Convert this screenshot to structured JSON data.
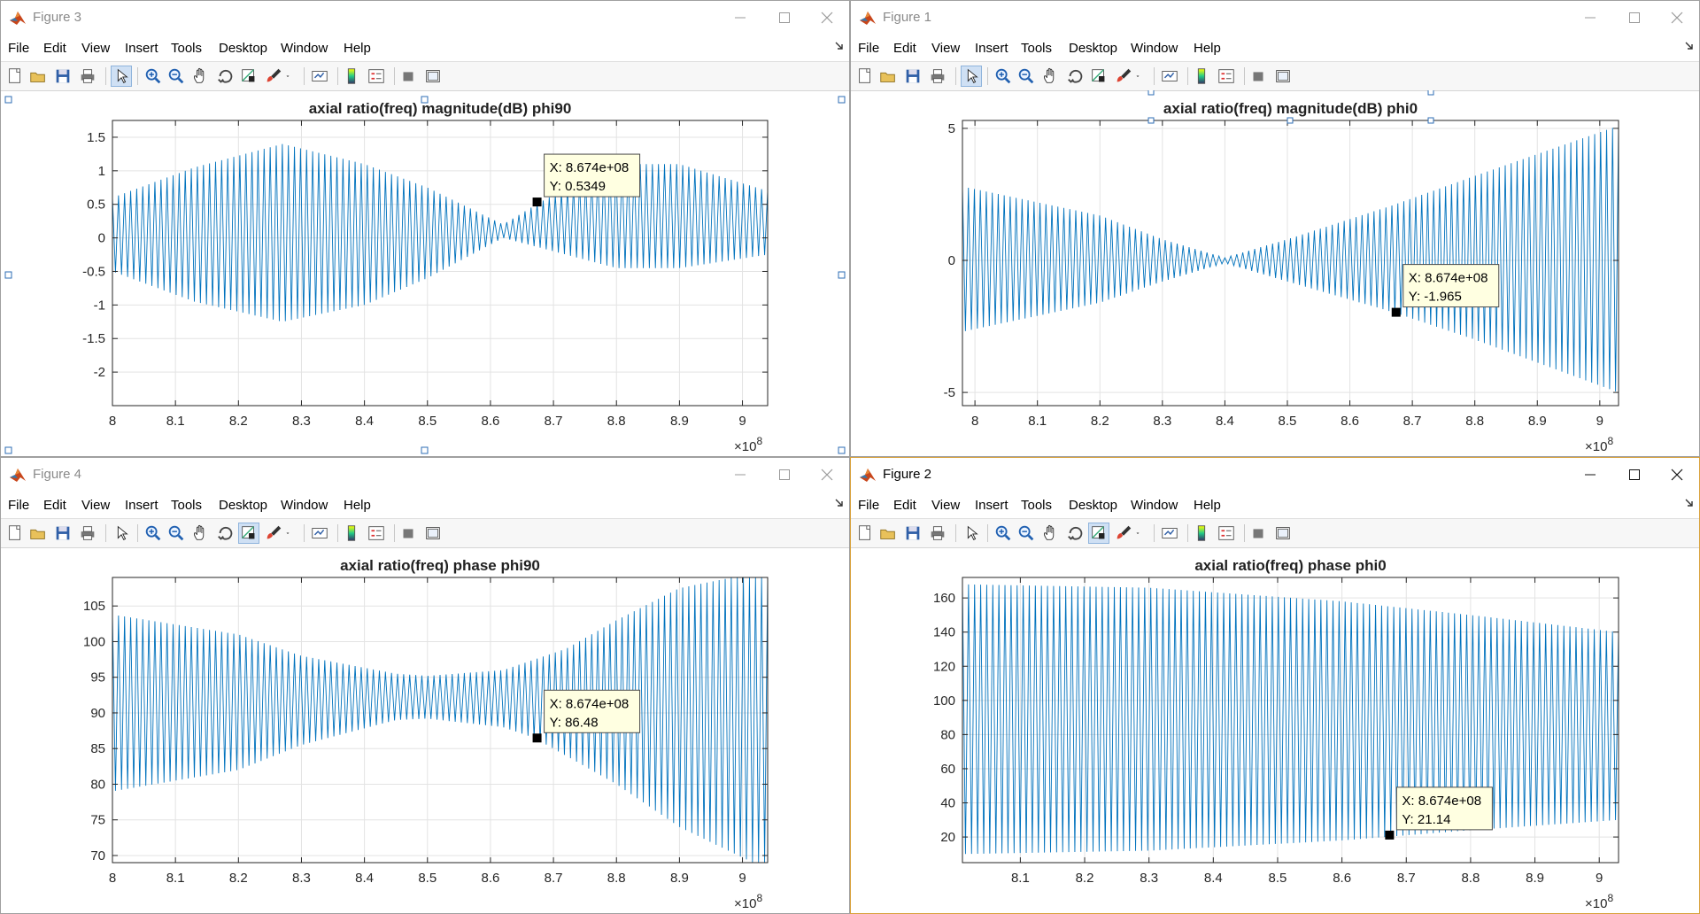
{
  "menus": [
    "File",
    "Edit",
    "View",
    "Insert",
    "Tools",
    "Desktop",
    "Window",
    "Help"
  ],
  "windows": [
    {
      "id": "fig3",
      "title": "Figure 3",
      "active": false,
      "selection_handles": true,
      "chart_data": {
        "type": "line",
        "title": "axial ratio(freq) magnitude(dB) phi90",
        "xlabel": "",
        "ylabel": "",
        "xlim": [
          800000000.0,
          904000000.0
        ],
        "ylim": [
          -2.5,
          1.75
        ],
        "xticks": [
          800000000.0,
          810000000.0,
          820000000.0,
          830000000.0,
          840000000.0,
          850000000.0,
          860000000.0,
          870000000.0,
          880000000.0,
          890000000.0,
          900000000.0
        ],
        "xtick_labels": [
          "8",
          "8.1",
          "8.2",
          "8.3",
          "8.4",
          "8.5",
          "8.6",
          "8.7",
          "8.8",
          "8.9",
          "9"
        ],
        "yticks": [
          1.5,
          1,
          0.5,
          0,
          -0.5,
          -1,
          -1.5,
          -2
        ],
        "ytick_labels": [
          "1.5",
          "1",
          "0.5",
          "0",
          "-0.5",
          "-1",
          "-1.5",
          "-2"
        ],
        "x_exponent": "8",
        "grid": true,
        "line_color": "#0072BD",
        "series": [
          {
            "cycles": 108,
            "envelope_upper": [
              [
                800000000.0,
                0.6
              ],
              [
                813000000.0,
                1.05
              ],
              [
                827000000.0,
                1.4
              ],
              [
                840000000.0,
                1.1
              ],
              [
                850000000.0,
                0.75
              ],
              [
                862000000.0,
                0.2
              ],
              [
                868000000.0,
                0.54
              ],
              [
                880000000.0,
                1.1
              ],
              [
                890000000.0,
                1.1
              ],
              [
                904000000.0,
                0.7
              ]
            ],
            "envelope_lower": [
              [
                800000000.0,
                -0.5
              ],
              [
                813000000.0,
                -0.95
              ],
              [
                827000000.0,
                -1.25
              ],
              [
                840000000.0,
                -1.0
              ],
              [
                850000000.0,
                -0.6
              ],
              [
                862000000.0,
                0.0
              ],
              [
                866000000.0,
                -0.1
              ],
              [
                880000000.0,
                -0.45
              ],
              [
                890000000.0,
                -0.45
              ],
              [
                904000000.0,
                -0.25
              ]
            ]
          }
        ],
        "datatip": {
          "x": 867400000.0,
          "y": 0.5349,
          "lines": [
            "X: 8.674e+08",
            "Y: 0.5349"
          ],
          "placement": "above-right"
        }
      }
    },
    {
      "id": "fig1",
      "title": "Figure 1",
      "active": false,
      "selection_handles": false,
      "chart_data": {
        "type": "line",
        "title": "axial ratio(freq) magnitude(dB) phi0",
        "xlabel": "",
        "ylabel": "",
        "xlim": [
          798000000.0,
          903000000.0
        ],
        "ylim": [
          -5.5,
          5.3
        ],
        "xticks": [
          800000000.0,
          810000000.0,
          820000000.0,
          830000000.0,
          840000000.0,
          850000000.0,
          860000000.0,
          870000000.0,
          880000000.0,
          890000000.0,
          900000000.0
        ],
        "xtick_labels": [
          "8",
          "8.1",
          "8.2",
          "8.3",
          "8.4",
          "8.5",
          "8.6",
          "8.7",
          "8.8",
          "8.9",
          "9"
        ],
        "yticks": [
          5,
          0,
          -5
        ],
        "ytick_labels": [
          "5",
          "0",
          "-5"
        ],
        "x_exponent": "8",
        "grid": true,
        "line_color": "#0072BD",
        "series": [
          {
            "cycles": 110,
            "envelope_upper": [
              [
                798000000.0,
                2.8
              ],
              [
                820000000.0,
                1.7
              ],
              [
                830000000.0,
                0.8
              ],
              [
                840000000.0,
                0.1
              ],
              [
                850000000.0,
                0.8
              ],
              [
                867000000.0,
                2.1
              ],
              [
                880000000.0,
                3.2
              ],
              [
                903000000.0,
                5.1
              ]
            ],
            "envelope_lower": [
              [
                798000000.0,
                -2.7
              ],
              [
                820000000.0,
                -1.6
              ],
              [
                830000000.0,
                -0.8
              ],
              [
                840000000.0,
                -0.1
              ],
              [
                850000000.0,
                -0.8
              ],
              [
                867000000.0,
                -1.965
              ],
              [
                880000000.0,
                -3.0
              ],
              [
                903000000.0,
                -5.0
              ]
            ]
          }
        ],
        "datatip": {
          "x": 867400000.0,
          "y": -1.965,
          "lines": [
            "X: 8.674e+08",
            "Y: -1.965"
          ],
          "placement": "above-right"
        }
      }
    },
    {
      "id": "fig4",
      "title": "Figure 4",
      "active": false,
      "selection_handles": false,
      "chart_data": {
        "type": "line",
        "title": "axial ratio(freq) phase phi90",
        "xlabel": "",
        "ylabel": "",
        "xlim": [
          800000000.0,
          904000000.0
        ],
        "ylim": [
          69,
          109
        ],
        "xticks": [
          800000000.0,
          810000000.0,
          820000000.0,
          830000000.0,
          840000000.0,
          850000000.0,
          860000000.0,
          870000000.0,
          880000000.0,
          890000000.0,
          900000000.0
        ],
        "xtick_labels": [
          "8",
          "8.1",
          "8.2",
          "8.3",
          "8.4",
          "8.5",
          "8.6",
          "8.7",
          "8.8",
          "8.9",
          "9"
        ],
        "yticks": [
          105,
          100,
          95,
          90,
          85,
          80,
          75,
          70
        ],
        "ytick_labels": [
          "105",
          "100",
          "95",
          "90",
          "85",
          "80",
          "75",
          "70"
        ],
        "x_exponent": "8",
        "grid": true,
        "line_color": "#0072BD",
        "series": [
          {
            "cycles": 108,
            "envelope_upper": [
              [
                800000000.0,
                103.8
              ],
              [
                820000000.0,
                101
              ],
              [
                830000000.0,
                98
              ],
              [
                845000000.0,
                95.5
              ],
              [
                850000000.0,
                95.2
              ],
              [
                862000000.0,
                96
              ],
              [
                872000000.0,
                99
              ],
              [
                880000000.0,
                103
              ],
              [
                890000000.0,
                107.5
              ],
              [
                904000000.0,
                110
              ]
            ],
            "envelope_lower": [
              [
                800000000.0,
                79
              ],
              [
                820000000.0,
                82
              ],
              [
                830000000.0,
                85.5
              ],
              [
                845000000.0,
                89
              ],
              [
                850000000.0,
                89.2
              ],
              [
                862000000.0,
                88
              ],
              [
                867000000.0,
                86.48
              ],
              [
                880000000.0,
                80
              ],
              [
                890000000.0,
                74
              ],
              [
                904000000.0,
                68
              ]
            ]
          }
        ],
        "datatip": {
          "x": 867400000.0,
          "y": 86.48,
          "lines": [
            "X: 8.674e+08",
            "Y: 86.48"
          ],
          "placement": "above-right"
        }
      }
    },
    {
      "id": "fig2",
      "title": "Figure 2",
      "active": true,
      "selection_handles": false,
      "chart_data": {
        "type": "line",
        "title": "axial ratio(freq) phase phi0",
        "xlabel": "",
        "ylabel": "",
        "xlim": [
          801000000.0,
          903000000.0
        ],
        "ylim": [
          5,
          172
        ],
        "xticks": [
          810000000.0,
          820000000.0,
          830000000.0,
          840000000.0,
          850000000.0,
          860000000.0,
          870000000.0,
          880000000.0,
          890000000.0,
          900000000.0
        ],
        "xtick_labels": [
          "8.1",
          "8.2",
          "8.3",
          "8.4",
          "8.5",
          "8.6",
          "8.7",
          "8.8",
          "8.9",
          "9"
        ],
        "yticks": [
          160,
          140,
          120,
          100,
          80,
          60,
          40,
          20
        ],
        "ytick_labels": [
          "160",
          "140",
          "120",
          "100",
          "80",
          "60",
          "40",
          "20"
        ],
        "x_exponent": "8",
        "grid": true,
        "line_color": "#0072BD",
        "series": [
          {
            "cycles": 108,
            "envelope_upper": [
              [
                801000000.0,
                168
              ],
              [
                830000000.0,
                166
              ],
              [
                860000000.0,
                158
              ],
              [
                880000000.0,
                150
              ],
              [
                903000000.0,
                140
              ]
            ],
            "envelope_lower": [
              [
                801000000.0,
                10
              ],
              [
                830000000.0,
                12
              ],
              [
                860000000.0,
                18
              ],
              [
                880000000.0,
                24
              ],
              [
                903000000.0,
                30
              ]
            ]
          }
        ],
        "datatip": {
          "x": 867400000.0,
          "y": 21.14,
          "lines": [
            "X: 8.674e+08",
            "Y: 21.14"
          ],
          "placement": "above-right"
        }
      }
    }
  ]
}
